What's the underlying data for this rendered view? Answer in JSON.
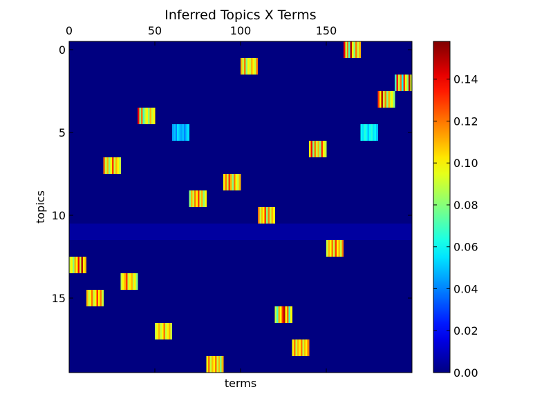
{
  "chart_data": {
    "type": "heatmap",
    "title": "Inferred Topics X Terms",
    "xlabel": "terms",
    "ylabel": "topics",
    "x_range": [
      0,
      199
    ],
    "y_range": [
      0,
      19
    ],
    "x_ticks": [
      0,
      50,
      100,
      150
    ],
    "y_ticks": [
      0,
      5,
      10,
      15
    ],
    "colormap": "jet",
    "vmin": 0.0,
    "vmax": 0.158,
    "colorbar_ticks": [
      "0.00",
      "0.02",
      "0.04",
      "0.06",
      "0.08",
      "0.10",
      "0.12",
      "0.14"
    ],
    "colorbar_values": [
      0.0,
      0.02,
      0.04,
      0.06,
      0.08,
      0.1,
      0.12,
      0.14
    ],
    "background_value": 0.0,
    "row_fills": [
      {
        "topic": 11,
        "value": 0.005
      }
    ],
    "blocks": [
      {
        "topic": 0,
        "term_start": 160,
        "values": [
          0.14,
          0.09,
          0.12,
          0.07,
          0.15,
          0.1,
          0.08,
          0.12,
          0.09,
          0.11
        ]
      },
      {
        "topic": 1,
        "term_start": 100,
        "values": [
          0.11,
          0.09,
          0.12,
          0.08,
          0.1,
          0.09,
          0.11,
          0.1,
          0.09,
          0.12
        ]
      },
      {
        "topic": 2,
        "term_start": 190,
        "values": [
          0.07,
          0.14,
          0.09,
          0.12,
          0.06,
          0.13,
          0.1,
          0.08,
          0.15,
          0.09
        ]
      },
      {
        "topic": 3,
        "term_start": 180,
        "values": [
          0.13,
          0.1,
          0.15,
          0.09,
          0.12,
          0.08,
          0.11,
          0.09,
          0.1,
          0.08
        ]
      },
      {
        "topic": 4,
        "term_start": 40,
        "values": [
          0.14,
          0.08,
          0.12,
          0.07,
          0.09,
          0.1,
          0.08,
          0.11,
          0.09,
          0.1
        ]
      },
      {
        "topic": 5,
        "term_start": 60,
        "values": [
          0.045,
          0.05,
          0.04,
          0.055,
          0.05,
          0.045,
          0.05,
          0.04,
          0.05,
          0.055
        ]
      },
      {
        "topic": 5,
        "term_start": 170,
        "values": [
          0.06,
          0.055,
          0.065,
          0.06,
          0.05,
          0.06,
          0.065,
          0.055,
          0.06,
          0.05
        ]
      },
      {
        "topic": 6,
        "term_start": 140,
        "values": [
          0.1,
          0.14,
          0.08,
          0.12,
          0.09,
          0.11,
          0.08,
          0.13,
          0.1,
          0.09
        ]
      },
      {
        "topic": 7,
        "term_start": 20,
        "values": [
          0.12,
          0.09,
          0.11,
          0.08,
          0.1,
          0.13,
          0.09,
          0.11,
          0.1,
          0.09
        ]
      },
      {
        "topic": 8,
        "term_start": 90,
        "values": [
          0.1,
          0.12,
          0.09,
          0.13,
          0.11,
          0.08,
          0.12,
          0.1,
          0.09,
          0.11
        ]
      },
      {
        "topic": 9,
        "term_start": 70,
        "values": [
          0.08,
          0.11,
          0.09,
          0.12,
          0.1,
          0.13,
          0.09,
          0.11,
          0.08,
          0.1
        ]
      },
      {
        "topic": 10,
        "term_start": 110,
        "values": [
          0.12,
          0.09,
          0.11,
          0.1,
          0.13,
          0.08,
          0.12,
          0.09,
          0.11,
          0.1
        ]
      },
      {
        "topic": 12,
        "term_start": 150,
        "values": [
          0.09,
          0.11,
          0.1,
          0.12,
          0.09,
          0.13,
          0.1,
          0.11,
          0.09,
          0.12
        ]
      },
      {
        "topic": 13,
        "term_start": 0,
        "values": [
          0.09,
          0.1,
          0.08,
          0.11,
          0.1,
          0.14,
          0.09,
          0.15,
          0.1,
          0.11
        ]
      },
      {
        "topic": 14,
        "term_start": 30,
        "values": [
          0.09,
          0.1,
          0.11,
          0.13,
          0.09,
          0.1,
          0.11,
          0.09,
          0.1,
          0.08
        ]
      },
      {
        "topic": 15,
        "term_start": 10,
        "values": [
          0.11,
          0.09,
          0.1,
          0.12,
          0.09,
          0.1,
          0.13,
          0.1,
          0.12,
          0.09
        ]
      },
      {
        "topic": 16,
        "term_start": 120,
        "values": [
          0.09,
          0.07,
          0.11,
          0.1,
          0.13,
          0.15,
          0.1,
          0.12,
          0.07,
          0.1
        ]
      },
      {
        "topic": 17,
        "term_start": 50,
        "values": [
          0.09,
          0.1,
          0.11,
          0.09,
          0.1,
          0.12,
          0.09,
          0.1,
          0.11,
          0.09
        ]
      },
      {
        "topic": 18,
        "term_start": 130,
        "values": [
          0.1,
          0.12,
          0.09,
          0.11,
          0.1,
          0.12,
          0.09,
          0.11,
          0.1,
          0.12
        ]
      },
      {
        "topic": 19,
        "term_start": 80,
        "values": [
          0.1,
          0.12,
          0.09,
          0.11,
          0.1,
          0.12,
          0.09,
          0.11,
          0.08,
          0.11
        ]
      }
    ]
  }
}
